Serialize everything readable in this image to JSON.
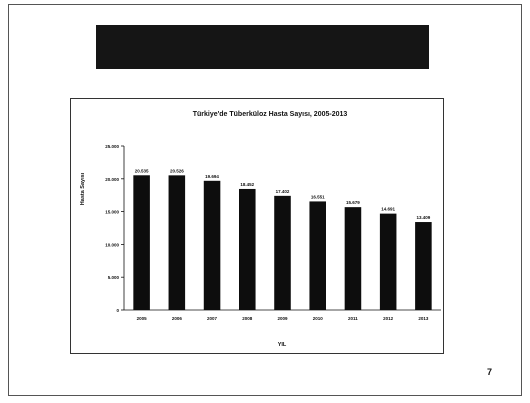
{
  "slide": {
    "page_number": "7"
  },
  "chart_data": {
    "type": "bar",
    "title": "Türkiye'de Tüberküloz Hasta Sayısı, 2005-2013",
    "xlabel": "YIL",
    "ylabel": "Hasta Sayısı",
    "categories": [
      "2005",
      "2006",
      "2007",
      "2008",
      "2009",
      "2010",
      "2011",
      "2012",
      "2013"
    ],
    "values": [
      20535,
      20526,
      19694,
      18452,
      17402,
      16551,
      15679,
      14691,
      13409
    ],
    "value_labels": [
      "20.535",
      "20.526",
      "19.694",
      "18.452",
      "17.402",
      "16.551",
      "15.679",
      "14.691",
      "13.409"
    ],
    "ylim": [
      0,
      25000
    ],
    "yticks": [
      0,
      5000,
      10000,
      15000,
      20000,
      25000
    ],
    "ytick_labels": [
      "0",
      "5.000",
      "10.000",
      "15.000",
      "20.000",
      "25.000"
    ],
    "bar_color": "#0d0d0d",
    "grid": false,
    "legend": "none"
  }
}
